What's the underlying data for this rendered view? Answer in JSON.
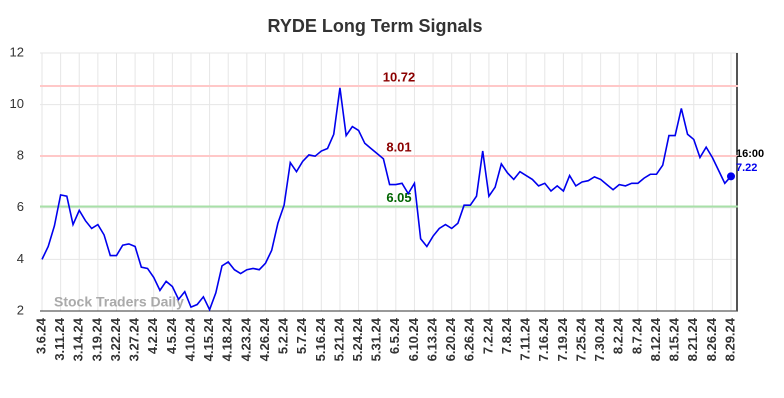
{
  "chart_data": {
    "type": "line",
    "title": "RYDE Long Term Signals",
    "categories": [
      "3.6.24",
      null,
      null,
      "3.11.24",
      null,
      null,
      "3.14.24",
      null,
      null,
      "3.19.24",
      null,
      null,
      "3.22.24",
      null,
      null,
      "3.27.24",
      null,
      null,
      "4.2.24",
      null,
      null,
      "4.5.24",
      null,
      null,
      "4.10.24",
      null,
      null,
      "4.15.24",
      null,
      null,
      "4.18.24",
      null,
      null,
      "4.23.24",
      null,
      null,
      "4.26.24",
      null,
      null,
      "5.2.24",
      null,
      null,
      "5.7.24",
      null,
      null,
      "5.16.24",
      null,
      null,
      "5.21.24",
      null,
      null,
      "5.24.24",
      null,
      null,
      "5.31.24",
      null,
      null,
      "6.5.24",
      null,
      null,
      "6.10.24",
      null,
      null,
      "6.13.24",
      null,
      null,
      "6.20.24",
      null,
      null,
      "6.26.24",
      null,
      null,
      "7.2.24",
      null,
      null,
      "7.8.24",
      null,
      null,
      "7.11.24",
      null,
      null,
      "7.16.24",
      null,
      null,
      "7.19.24",
      null,
      null,
      "7.25.24",
      null,
      null,
      "7.30.24",
      null,
      null,
      "8.2.24",
      null,
      null,
      "8.7.24",
      null,
      null,
      "8.12.24",
      null,
      null,
      "8.15.24",
      null,
      null,
      "8.21.24",
      null,
      null,
      "8.26.24",
      null,
      null,
      "8.29.24"
    ],
    "series": [
      {
        "name": "RYDE",
        "color": "#0000ee",
        "values": [
          4.0,
          4.5,
          5.3,
          6.5,
          6.45,
          5.35,
          5.9,
          5.5,
          5.2,
          5.35,
          4.95,
          4.15,
          4.15,
          4.55,
          4.6,
          4.5,
          3.7,
          3.65,
          3.3,
          2.8,
          3.15,
          2.95,
          2.45,
          2.75,
          2.15,
          2.25,
          2.55,
          2.05,
          2.7,
          3.75,
          3.9,
          3.6,
          3.45,
          3.6,
          3.65,
          3.6,
          3.85,
          4.35,
          5.4,
          6.1,
          7.75,
          7.4,
          7.8,
          8.05,
          8.0,
          8.2,
          8.3,
          8.85,
          10.65,
          8.8,
          9.15,
          9.0,
          8.5,
          8.3,
          8.1,
          7.9,
          6.9,
          6.9,
          6.95,
          6.55,
          6.95,
          4.8,
          4.5,
          4.9,
          5.2,
          5.35,
          5.2,
          5.4,
          6.1,
          6.1,
          6.45,
          8.2,
          6.45,
          6.8,
          7.7,
          7.35,
          7.1,
          7.4,
          7.25,
          7.1,
          6.85,
          6.95,
          6.65,
          6.85,
          6.65,
          7.25,
          6.85,
          7.0,
          7.05,
          7.2,
          7.1,
          6.9,
          6.7,
          6.9,
          6.85,
          6.95,
          6.95,
          7.15,
          7.3,
          7.3,
          7.65,
          8.8,
          8.8,
          9.85,
          8.85,
          8.65,
          7.95,
          8.35,
          7.95,
          7.45,
          6.95,
          7.22
        ]
      }
    ],
    "ylim": [
      2,
      12
    ],
    "yticks": [
      2,
      4,
      6,
      8,
      10,
      12
    ],
    "grid": true,
    "hlines": [
      {
        "value": 10.72,
        "color": "#ffc8c8",
        "label_color": "#8b0000"
      },
      {
        "value": 8.01,
        "color": "#ffc8c8",
        "label_color": "#8b0000"
      },
      {
        "value": 6.05,
        "color": "#a8e0a8",
        "label_color": "#006400"
      }
    ],
    "annotations": {
      "time": "16:00",
      "watermark": "Stock Traders Daily"
    }
  }
}
